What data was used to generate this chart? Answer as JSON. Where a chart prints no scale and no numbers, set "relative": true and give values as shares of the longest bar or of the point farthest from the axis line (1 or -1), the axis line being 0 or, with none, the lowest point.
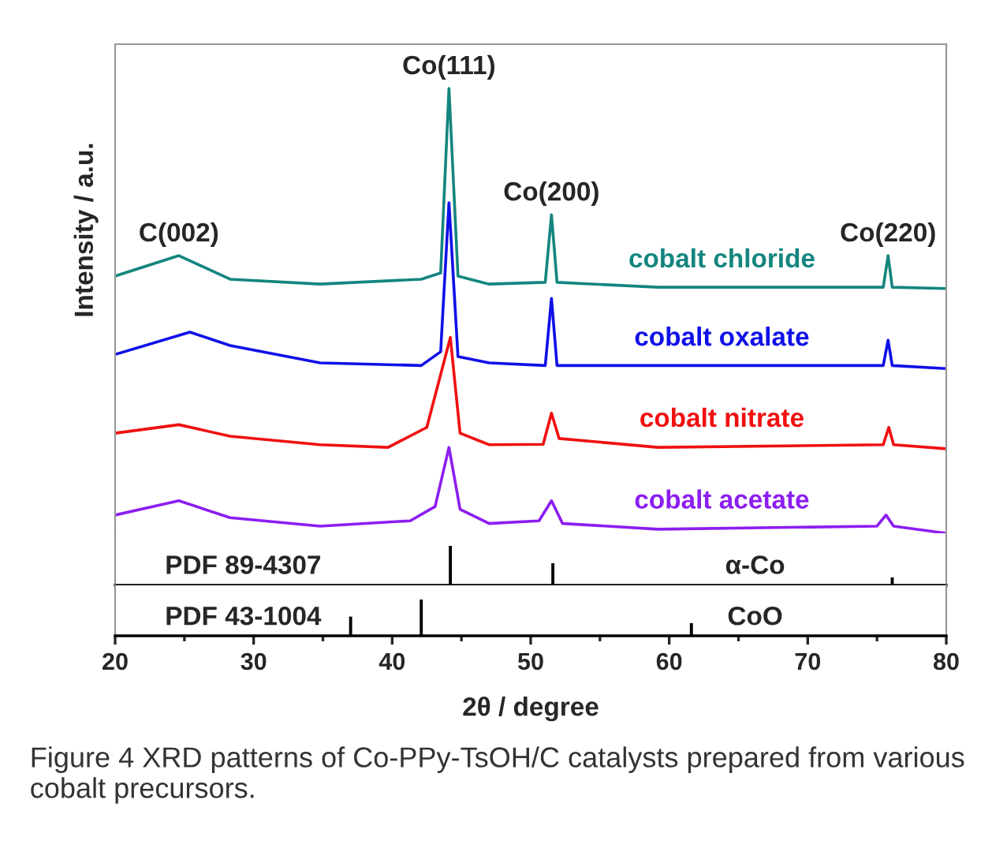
{
  "chart_data": [
    {
      "type": "line",
      "relative": true,
      "ylabel": "Intensity / a.u.",
      "xlim": [
        20,
        80
      ],
      "tick_labels": false,
      "series": [
        {
          "name": "cobalt chloride",
          "color": "#14857f",
          "x": [
            20,
            24.6,
            28.3,
            34.8,
            42.1,
            43.5,
            44.1,
            44.75,
            47,
            51.05,
            51.5,
            51.9,
            59.2,
            75.45,
            75.8,
            76.1,
            80
          ],
          "values": [
            0.578,
            0.624,
            0.571,
            0.56,
            0.571,
            0.585,
            1,
            0.578,
            0.56,
            0.564,
            0.716,
            0.564,
            0.553,
            0.553,
            0.624,
            0.553,
            0.55
          ]
        },
        {
          "name": "cobalt oxalate",
          "color": "#1010e8",
          "x": [
            20,
            25.4,
            28.3,
            34.8,
            42.1,
            43.5,
            44.1,
            44.75,
            47,
            51.05,
            51.5,
            51.9,
            59.2,
            75.45,
            75.8,
            76.1,
            80
          ],
          "values": [
            0.402,
            0.452,
            0.422,
            0.383,
            0.377,
            0.408,
            0.743,
            0.397,
            0.383,
            0.377,
            0.528,
            0.377,
            0.377,
            0.377,
            0.434,
            0.377,
            0.37
          ]
        },
        {
          "name": "cobalt nitrate",
          "color": "#f01010",
          "x": [
            20,
            24.6,
            28.3,
            34.8,
            39.7,
            42.5,
            44.2,
            44.9,
            47,
            50.9,
            51.5,
            52.05,
            59.2,
            75.45,
            75.85,
            76.2,
            80
          ],
          "values": [
            0.225,
            0.244,
            0.218,
            0.199,
            0.193,
            0.238,
            0.44,
            0.225,
            0.199,
            0.2,
            0.27,
            0.213,
            0.193,
            0.199,
            0.238,
            0.199,
            0.19
          ]
        },
        {
          "name": "cobalt acetate",
          "color": "#8c1ef0",
          "x": [
            20,
            24.6,
            28.3,
            34.8,
            41.3,
            43.1,
            44.1,
            44.9,
            47,
            50.6,
            51.5,
            52.3,
            59.2,
            75.0,
            75.65,
            76.2,
            80
          ],
          "values": [
            0.041,
            0.073,
            0.035,
            0.016,
            0.028,
            0.06,
            0.193,
            0.054,
            0.022,
            0.028,
            0.073,
            0.022,
            0.009,
            0.016,
            0.041,
            0.016,
            0
          ]
        }
      ],
      "annotations": [
        {
          "text": "C(002)",
          "x": 24.6,
          "y": 0.624
        },
        {
          "text": "Co(111)",
          "x": 44.1,
          "y": 1
        },
        {
          "text": "Co(200)",
          "x": 51.5,
          "y": 0.716
        },
        {
          "text": "Co(220)",
          "x": 75.8,
          "y": 0.624
        }
      ]
    },
    {
      "type": "bar",
      "relative": true,
      "xlim": [
        20,
        80
      ],
      "tick_labels": false,
      "color": "#000000",
      "x": [
        44.2,
        51.6,
        76.1
      ],
      "values": [
        1,
        0.56,
        0.2
      ],
      "annotations": [
        "PDF 89-4307",
        "α-Co"
      ]
    },
    {
      "type": "bar",
      "relative": true,
      "xlim": [
        20,
        80
      ],
      "tick_labels": "x",
      "color": "#000000",
      "xlabel": "2θ / degree",
      "xticks": [
        20,
        {
          "value": 25,
          "label": null
        },
        30,
        {
          "value": 35,
          "label": null
        },
        40,
        {
          "value": 45,
          "label": null
        },
        50,
        {
          "value": 55,
          "label": null
        },
        60,
        {
          "value": 65,
          "label": null
        },
        70,
        {
          "value": 75,
          "label": null
        },
        80
      ],
      "x": [
        37.0,
        42.1,
        61.6
      ],
      "values": [
        0.53,
        1,
        0.35
      ],
      "annotations": [
        "PDF 43-1004",
        "CoO",
        "Figure 4 XRD patterns of Co-PPy-TsOH/C catalysts prepared from various cobalt precursors."
      ]
    }
  ]
}
